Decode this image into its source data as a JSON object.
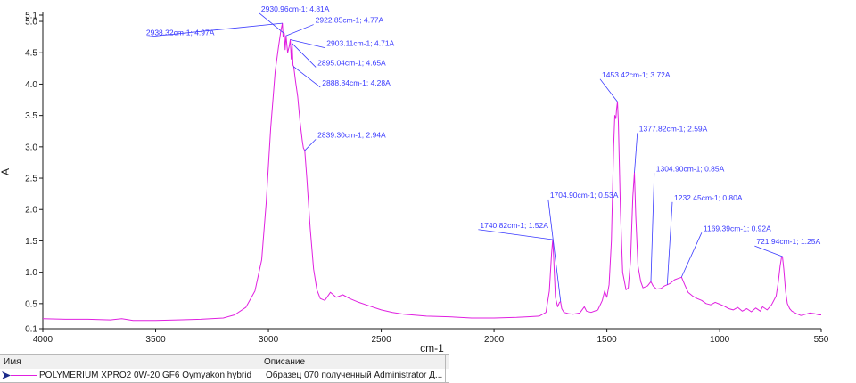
{
  "chart_data": {
    "type": "line",
    "xlabel": "cm-1",
    "ylabel": "A",
    "xlim": [
      4000,
      550
    ],
    "ylim": [
      0.1,
      5.1
    ],
    "x_ticks": [
      4000,
      3500,
      3000,
      2500,
      2000,
      1500,
      1000,
      550
    ],
    "y_ticks": [
      0.1,
      0.5,
      1.0,
      1.5,
      2.0,
      2.5,
      3.0,
      3.5,
      4.0,
      4.5,
      5.0,
      5.1
    ],
    "y_tick_labels": [
      "0.1",
      "0.5",
      "1.0",
      "1.5",
      "2.0",
      "2.5",
      "3.0",
      "3.5",
      "4.0",
      "4.5",
      "5.0",
      "5.1"
    ],
    "line_color": "#e020e0",
    "annotation_color": "#3a3aff",
    "series": [
      {
        "name": "POLYMERIUM XPRO2 0W-20 GF6 Oymyakon hybrid",
        "points": [
          [
            4000,
            0.26
          ],
          [
            3900,
            0.25
          ],
          [
            3800,
            0.25
          ],
          [
            3700,
            0.24
          ],
          [
            3650,
            0.26
          ],
          [
            3600,
            0.23
          ],
          [
            3500,
            0.23
          ],
          [
            3400,
            0.24
          ],
          [
            3300,
            0.25
          ],
          [
            3200,
            0.27
          ],
          [
            3150,
            0.32
          ],
          [
            3100,
            0.44
          ],
          [
            3060,
            0.7
          ],
          [
            3030,
            1.2
          ],
          [
            3010,
            2.1
          ],
          [
            2990,
            3.3
          ],
          [
            2970,
            4.2
          ],
          [
            2955,
            4.6
          ],
          [
            2945,
            4.85
          ],
          [
            2938,
            4.97
          ],
          [
            2935,
            4.75
          ],
          [
            2930,
            4.81
          ],
          [
            2926,
            4.55
          ],
          [
            2922,
            4.77
          ],
          [
            2915,
            4.5
          ],
          [
            2908,
            4.6
          ],
          [
            2903,
            4.71
          ],
          [
            2899,
            4.4
          ],
          [
            2895,
            4.65
          ],
          [
            2891,
            4.3
          ],
          [
            2888,
            4.28
          ],
          [
            2880,
            4.05
          ],
          [
            2870,
            3.8
          ],
          [
            2860,
            3.4
          ],
          [
            2850,
            3.1
          ],
          [
            2845,
            2.98
          ],
          [
            2839,
            2.94
          ],
          [
            2830,
            2.5
          ],
          [
            2815,
            1.7
          ],
          [
            2800,
            1.05
          ],
          [
            2785,
            0.72
          ],
          [
            2770,
            0.58
          ],
          [
            2750,
            0.55
          ],
          [
            2725,
            0.68
          ],
          [
            2700,
            0.6
          ],
          [
            2670,
            0.64
          ],
          [
            2640,
            0.58
          ],
          [
            2600,
            0.52
          ],
          [
            2550,
            0.46
          ],
          [
            2500,
            0.4
          ],
          [
            2450,
            0.36
          ],
          [
            2400,
            0.33
          ],
          [
            2300,
            0.3
          ],
          [
            2200,
            0.29
          ],
          [
            2100,
            0.27
          ],
          [
            2000,
            0.27
          ],
          [
            1900,
            0.28
          ],
          [
            1850,
            0.29
          ],
          [
            1800,
            0.3
          ],
          [
            1770,
            0.36
          ],
          [
            1755,
            0.7
          ],
          [
            1745,
            1.3
          ],
          [
            1740,
            1.52
          ],
          [
            1736,
            1.25
          ],
          [
            1728,
            0.6
          ],
          [
            1718,
            0.45
          ],
          [
            1710,
            0.52
          ],
          [
            1705,
            0.53
          ],
          [
            1700,
            0.42
          ],
          [
            1690,
            0.36
          ],
          [
            1670,
            0.34
          ],
          [
            1650,
            0.33
          ],
          [
            1620,
            0.35
          ],
          [
            1600,
            0.45
          ],
          [
            1590,
            0.38
          ],
          [
            1570,
            0.36
          ],
          [
            1540,
            0.4
          ],
          [
            1520,
            0.55
          ],
          [
            1510,
            0.7
          ],
          [
            1500,
            0.6
          ],
          [
            1490,
            0.8
          ],
          [
            1480,
            1.5
          ],
          [
            1470,
            3.0
          ],
          [
            1465,
            3.5
          ],
          [
            1460,
            3.45
          ],
          [
            1457,
            3.6
          ],
          [
            1453,
            3.72
          ],
          [
            1449,
            3.4
          ],
          [
            1440,
            2.0
          ],
          [
            1430,
            1.0
          ],
          [
            1415,
            0.72
          ],
          [
            1405,
            0.75
          ],
          [
            1395,
            1.2
          ],
          [
            1385,
            2.2
          ],
          [
            1378,
            2.59
          ],
          [
            1372,
            1.9
          ],
          [
            1362,
            1.1
          ],
          [
            1350,
            0.85
          ],
          [
            1340,
            0.75
          ],
          [
            1320,
            0.78
          ],
          [
            1305,
            0.85
          ],
          [
            1295,
            0.78
          ],
          [
            1280,
            0.73
          ],
          [
            1260,
            0.74
          ],
          [
            1245,
            0.78
          ],
          [
            1232,
            0.8
          ],
          [
            1220,
            0.82
          ],
          [
            1200,
            0.88
          ],
          [
            1185,
            0.9
          ],
          [
            1169,
            0.92
          ],
          [
            1155,
            0.8
          ],
          [
            1140,
            0.68
          ],
          [
            1120,
            0.62
          ],
          [
            1100,
            0.58
          ],
          [
            1080,
            0.55
          ],
          [
            1060,
            0.5
          ],
          [
            1040,
            0.48
          ],
          [
            1020,
            0.52
          ],
          [
            1000,
            0.49
          ],
          [
            980,
            0.46
          ],
          [
            960,
            0.42
          ],
          [
            940,
            0.4
          ],
          [
            920,
            0.44
          ],
          [
            900,
            0.38
          ],
          [
            880,
            0.42
          ],
          [
            860,
            0.37
          ],
          [
            840,
            0.43
          ],
          [
            820,
            0.38
          ],
          [
            810,
            0.45
          ],
          [
            790,
            0.4
          ],
          [
            770,
            0.48
          ],
          [
            750,
            0.62
          ],
          [
            740,
            0.85
          ],
          [
            732,
            1.1
          ],
          [
            726,
            1.24
          ],
          [
            722,
            1.25
          ],
          [
            716,
            1.05
          ],
          [
            708,
            0.7
          ],
          [
            700,
            0.5
          ],
          [
            690,
            0.42
          ],
          [
            680,
            0.38
          ],
          [
            660,
            0.34
          ],
          [
            640,
            0.31
          ],
          [
            620,
            0.33
          ],
          [
            600,
            0.35
          ],
          [
            580,
            0.34
          ],
          [
            560,
            0.32
          ],
          [
            550,
            0.32
          ]
        ]
      }
    ],
    "annotations": [
      {
        "label": "2938.32cm-1; 4.97A",
        "x": 2938.32,
        "y": 4.97,
        "text_x": 3550,
        "text_y": 4.75
      },
      {
        "label": "2930.96cm-1; 4.81A",
        "x": 2930.96,
        "y": 4.81,
        "text_x": 3040,
        "text_y": 5.13
      },
      {
        "label": "2922.85cm-1; 4.77A",
        "x": 2922.85,
        "y": 4.77,
        "text_x": 2800,
        "text_y": 4.95
      },
      {
        "label": "2903.11cm-1; 4.71A",
        "x": 2903.11,
        "y": 4.71,
        "text_x": 2750,
        "text_y": 4.58
      },
      {
        "label": "2895.04cm-1; 4.65A",
        "x": 2895.04,
        "y": 4.65,
        "text_x": 2790,
        "text_y": 4.27
      },
      {
        "label": "2888.84cm-1; 4.28A",
        "x": 2888.84,
        "y": 4.28,
        "text_x": 2770,
        "text_y": 3.95
      },
      {
        "label": "2839.30cm-1; 2.94A",
        "x": 2839.3,
        "y": 2.94,
        "text_x": 2790,
        "text_y": 3.12
      },
      {
        "label": "1740.82cm-1; 1.52A",
        "x": 1740.82,
        "y": 1.52,
        "text_x": 2070,
        "text_y": 1.68
      },
      {
        "label": "1704.90cm-1; 0.53A",
        "x": 1704.9,
        "y": 0.53,
        "text_x": 1760,
        "text_y": 2.16
      },
      {
        "label": "1453.42cm-1; 3.72A",
        "x": 1453.42,
        "y": 3.72,
        "text_x": 1530,
        "text_y": 4.08
      },
      {
        "label": "1377.82cm-1; 2.59A",
        "x": 1377.82,
        "y": 2.59,
        "text_x": 1365,
        "text_y": 3.22
      },
      {
        "label": "1304.90cm-1; 0.85A",
        "x": 1304.9,
        "y": 0.85,
        "text_x": 1290,
        "text_y": 2.58
      },
      {
        "label": "1232.45cm-1; 0.80A",
        "x": 1232.45,
        "y": 0.8,
        "text_x": 1210,
        "text_y": 2.12
      },
      {
        "label": "1169.39cm-1; 0.92A",
        "x": 1169.39,
        "y": 0.92,
        "text_x": 1080,
        "text_y": 1.63
      },
      {
        "label": "721.94cm-1; 1.25A",
        "x": 721.94,
        "y": 1.25,
        "text_x": 845,
        "text_y": 1.42
      }
    ]
  },
  "legend": {
    "header_name": "Имя",
    "header_description": "Описание",
    "series_name": "POLYMERIUM XPRO2 0W-20 GF6 Oymyakon hybrid",
    "series_description": "Образец 070 полученный Administrator Д..."
  }
}
